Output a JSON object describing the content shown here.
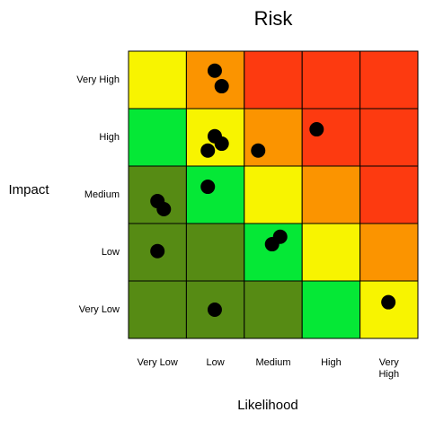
{
  "chart_data": {
    "type": "heatmap",
    "title": "Risk",
    "x_label": "Likelihood",
    "y_label": "Impact",
    "x_categories": [
      "Very Low",
      "Low",
      "Medium",
      "High",
      "Very High"
    ],
    "y_categories": [
      "Very High",
      "High",
      "Medium",
      "Low",
      "Very Low"
    ],
    "cell_colors": [
      [
        "#f8f400",
        "#fb9400",
        "#fd3a10",
        "#fd3a10",
        "#fd3a10"
      ],
      [
        "#05e836",
        "#f8f400",
        "#fb9400",
        "#fd3a10",
        "#fd3a10"
      ],
      [
        "#568b14",
        "#05e836",
        "#f8f400",
        "#fb9400",
        "#fd3a10"
      ],
      [
        "#568b14",
        "#568b14",
        "#05e836",
        "#f8f400",
        "#fb9400"
      ],
      [
        "#568b14",
        "#568b14",
        "#568b14",
        "#05e836",
        "#f8f400"
      ]
    ],
    "xlim": [
      0,
      5
    ],
    "ylim": [
      0,
      5
    ],
    "points": {
      "color": "#000000",
      "x": [
        1.49,
        1.61,
        3.25,
        1.49,
        1.61,
        1.37,
        2.24,
        1.37,
        0.5,
        0.61,
        2.62,
        2.48,
        0.5,
        1.49,
        4.49
      ],
      "y": [
        4.66,
        4.39,
        3.64,
        3.52,
        3.39,
        3.27,
        3.27,
        2.64,
        2.39,
        2.25,
        1.77,
        1.64,
        1.52,
        0.5,
        0.63
      ]
    }
  }
}
